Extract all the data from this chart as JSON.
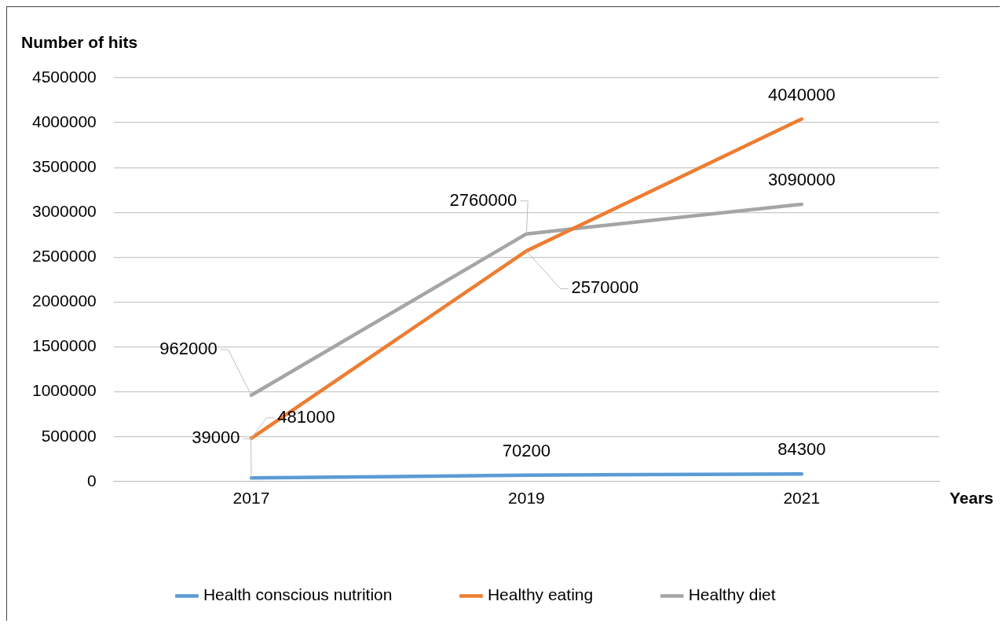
{
  "chart_data": {
    "type": "line",
    "ylabel": "Number of hits",
    "xlabel": "Years",
    "categories": [
      "2017",
      "2019",
      "2021"
    ],
    "series": [
      {
        "name": "Health conscious nutrition",
        "color": "#5b9bd5",
        "values": [
          39000,
          70200,
          84300
        ]
      },
      {
        "name": "Healthy eating",
        "color": "#ed7d31",
        "values": [
          481000,
          2570000,
          4040000
        ]
      },
      {
        "name": "Healthy diet",
        "color": "#a5a5a5",
        "values": [
          962000,
          2760000,
          3090000
        ]
      }
    ],
    "ylim": [
      0,
      4500000
    ],
    "yticks": [
      0,
      500000,
      1000000,
      1500000,
      2000000,
      2500000,
      3000000,
      3500000,
      4000000,
      4500000
    ],
    "grid": "y",
    "legend": "bottom",
    "data_labels": true,
    "marker": "none",
    "line_style": "solid"
  }
}
